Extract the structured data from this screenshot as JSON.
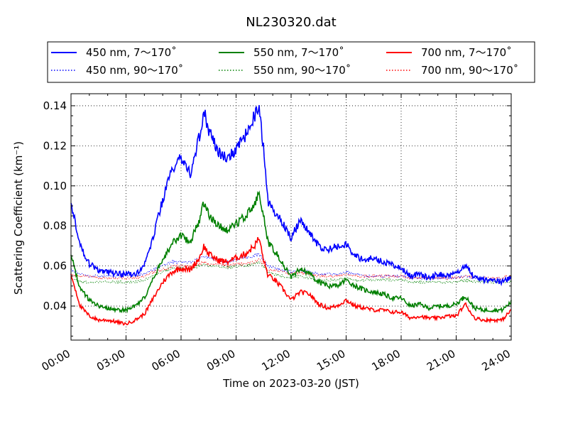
{
  "chart_data": {
    "type": "line",
    "title": "NL230320.dat",
    "xlabel": "Time on 2023-03-20 (JST)",
    "ylabel": "Scattering Coefficient (km⁻¹)",
    "xlim": [
      0,
      24
    ],
    "ylim": [
      0.023,
      0.146
    ],
    "x_ticks": [
      0,
      3,
      6,
      9,
      12,
      15,
      18,
      21,
      24
    ],
    "x_tick_labels": [
      "00:00",
      "03:00",
      "06:00",
      "09:00",
      "12:00",
      "15:00",
      "18:00",
      "21:00",
      "24:00"
    ],
    "y_ticks": [
      0.04,
      0.06,
      0.08,
      0.1,
      0.12,
      0.14
    ],
    "y_tick_labels": [
      "0.04",
      "0.06",
      "0.08",
      "0.10",
      "0.12",
      "0.14"
    ],
    "grid": true,
    "legend_position": "top",
    "x": [
      0,
      0.5,
      1,
      1.5,
      2,
      2.5,
      3,
      3.5,
      4,
      4.5,
      5,
      5.5,
      6,
      6.5,
      7,
      7.25,
      7.5,
      8,
      8.5,
      9,
      9.5,
      10,
      10.25,
      10.5,
      10.75,
      11,
      11.5,
      12,
      12.5,
      13,
      13.5,
      14,
      14.5,
      15,
      15.5,
      16,
      16.5,
      17,
      17.5,
      18,
      18.5,
      19,
      19.5,
      20,
      20.5,
      21,
      21.5,
      22,
      22.5,
      23,
      23.5,
      24
    ],
    "series": [
      {
        "name": "450 nm, 7～170˚",
        "color": "#0000ff",
        "style": "solid",
        "values": [
          0.092,
          0.07,
          0.061,
          0.058,
          0.057,
          0.056,
          0.056,
          0.056,
          0.06,
          0.075,
          0.093,
          0.108,
          0.114,
          0.106,
          0.125,
          0.137,
          0.128,
          0.117,
          0.114,
          0.118,
          0.125,
          0.135,
          0.138,
          0.118,
          0.092,
          0.088,
          0.082,
          0.074,
          0.083,
          0.077,
          0.07,
          0.068,
          0.07,
          0.071,
          0.065,
          0.063,
          0.064,
          0.062,
          0.061,
          0.059,
          0.055,
          0.056,
          0.054,
          0.056,
          0.055,
          0.056,
          0.061,
          0.054,
          0.053,
          0.053,
          0.052,
          0.054
        ]
      },
      {
        "name": "550 nm, 7～170˚",
        "color": "#008000",
        "style": "solid",
        "values": [
          0.065,
          0.049,
          0.043,
          0.04,
          0.039,
          0.038,
          0.038,
          0.04,
          0.044,
          0.054,
          0.063,
          0.071,
          0.075,
          0.072,
          0.083,
          0.092,
          0.086,
          0.08,
          0.078,
          0.081,
          0.085,
          0.09,
          0.097,
          0.085,
          0.071,
          0.069,
          0.062,
          0.054,
          0.059,
          0.056,
          0.052,
          0.05,
          0.05,
          0.053,
          0.05,
          0.048,
          0.047,
          0.046,
          0.044,
          0.044,
          0.04,
          0.041,
          0.039,
          0.04,
          0.04,
          0.041,
          0.045,
          0.039,
          0.038,
          0.038,
          0.038,
          0.042
        ]
      },
      {
        "name": "700 nm, 7～170˚",
        "color": "#ff0000",
        "style": "solid",
        "values": [
          0.056,
          0.04,
          0.035,
          0.033,
          0.033,
          0.032,
          0.031,
          0.033,
          0.036,
          0.044,
          0.052,
          0.057,
          0.059,
          0.058,
          0.064,
          0.07,
          0.066,
          0.063,
          0.062,
          0.064,
          0.066,
          0.07,
          0.074,
          0.063,
          0.055,
          0.054,
          0.049,
          0.043,
          0.047,
          0.046,
          0.041,
          0.039,
          0.04,
          0.043,
          0.04,
          0.039,
          0.038,
          0.038,
          0.037,
          0.037,
          0.034,
          0.035,
          0.034,
          0.034,
          0.035,
          0.035,
          0.041,
          0.034,
          0.033,
          0.033,
          0.033,
          0.038
        ]
      },
      {
        "name": "450 nm, 90～170˚",
        "color": "#0000ff",
        "style": "dotted",
        "values": [
          0.058,
          0.056,
          0.055,
          0.055,
          0.055,
          0.055,
          0.055,
          0.055,
          0.056,
          0.058,
          0.06,
          0.062,
          0.062,
          0.062,
          0.064,
          0.065,
          0.064,
          0.063,
          0.062,
          0.063,
          0.064,
          0.065,
          0.066,
          0.063,
          0.06,
          0.059,
          0.058,
          0.057,
          0.058,
          0.057,
          0.056,
          0.056,
          0.056,
          0.057,
          0.056,
          0.055,
          0.055,
          0.055,
          0.055,
          0.055,
          0.054,
          0.054,
          0.054,
          0.054,
          0.054,
          0.054,
          0.055,
          0.054,
          0.053,
          0.053,
          0.053,
          0.054
        ]
      },
      {
        "name": "550 nm, 90～170˚",
        "color": "#008000",
        "style": "dotted",
        "values": [
          0.054,
          0.052,
          0.052,
          0.052,
          0.052,
          0.052,
          0.052,
          0.052,
          0.053,
          0.055,
          0.057,
          0.059,
          0.059,
          0.059,
          0.06,
          0.061,
          0.06,
          0.06,
          0.059,
          0.06,
          0.06,
          0.061,
          0.062,
          0.06,
          0.057,
          0.056,
          0.055,
          0.054,
          0.055,
          0.054,
          0.053,
          0.053,
          0.053,
          0.054,
          0.053,
          0.053,
          0.053,
          0.053,
          0.053,
          0.053,
          0.052,
          0.052,
          0.052,
          0.052,
          0.052,
          0.052,
          0.053,
          0.052,
          0.052,
          0.052,
          0.052,
          0.052
        ]
      },
      {
        "name": "700 nm, 90～170˚",
        "color": "#ff0000",
        "style": "dotted",
        "values": [
          0.056,
          0.055,
          0.055,
          0.054,
          0.054,
          0.054,
          0.054,
          0.054,
          0.055,
          0.057,
          0.058,
          0.06,
          0.06,
          0.06,
          0.061,
          0.062,
          0.061,
          0.061,
          0.06,
          0.061,
          0.061,
          0.062,
          0.063,
          0.061,
          0.058,
          0.058,
          0.057,
          0.056,
          0.057,
          0.056,
          0.055,
          0.055,
          0.055,
          0.056,
          0.055,
          0.055,
          0.055,
          0.055,
          0.055,
          0.055,
          0.054,
          0.054,
          0.054,
          0.054,
          0.054,
          0.054,
          0.055,
          0.054,
          0.054,
          0.054,
          0.054,
          0.055
        ]
      }
    ]
  }
}
